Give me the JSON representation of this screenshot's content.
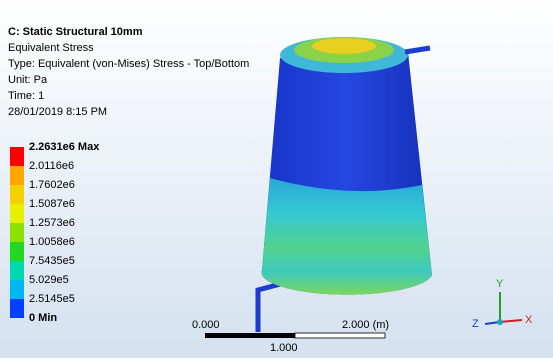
{
  "header": {
    "title": "C: Static Structural 10mm",
    "lines": [
      "Equivalent Stress",
      "Type: Equivalent (von-Mises) Stress - Top/Bottom",
      "Unit: Pa",
      "Time: 1",
      "28/01/2019 8:15 PM"
    ]
  },
  "legend": {
    "labels": [
      "2.2631e6 Max",
      "2.0116e6",
      "1.7602e6",
      "1.5087e6",
      "1.2573e6",
      "1.0058e6",
      "7.5435e5",
      "5.029e5",
      "2.5145e5",
      "0 Min"
    ]
  },
  "scale": {
    "start": "0.000",
    "end": "2.000 (m)",
    "middle": "1.000"
  },
  "triad": {
    "y": "Y",
    "z": "Z",
    "x": "X"
  }
}
